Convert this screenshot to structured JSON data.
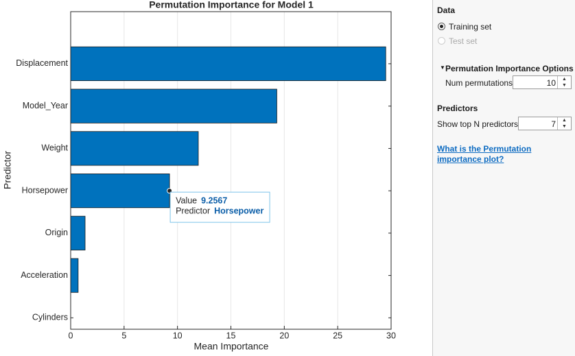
{
  "chart_data": {
    "type": "barh",
    "title": "Permutation Importance for Model 1",
    "xlabel": "Mean Importance",
    "ylabel": "Predictor",
    "categories": [
      "Displacement",
      "Model_Year",
      "Weight",
      "Horsepower",
      "Origin",
      "Acceleration",
      "Cylinders"
    ],
    "values": [
      29.5,
      19.3,
      11.95,
      9.2567,
      1.35,
      0.7,
      0
    ],
    "color": "#0072bd",
    "xlim": [
      0,
      30
    ],
    "xticks": [
      0,
      5,
      10,
      15,
      20,
      25,
      30
    ],
    "grid": true,
    "tooltip": {
      "value_label": "Value",
      "predictor_label": "Predictor"
    }
  },
  "panel": {
    "data": {
      "title": "Data",
      "options": [
        "Training set",
        "Test set"
      ]
    },
    "options": {
      "title": "Permutation Importance Options",
      "num_permutations_label": "Num permutations",
      "num_permutations": 10
    },
    "predictors": {
      "title": "Predictors",
      "top_n_label": "Show top N predictors",
      "top_n": 7
    },
    "link": "What is the Permutation importance plot?"
  }
}
